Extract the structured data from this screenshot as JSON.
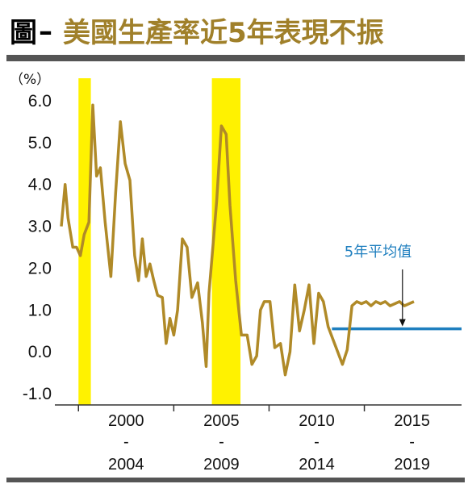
{
  "figure": {
    "label": "圖",
    "dash": "–",
    "title": "美國生產率近5年表現不振"
  },
  "colors": {
    "title": "#a0802a",
    "line": "#b08a28",
    "shade": "#fff200",
    "average": "#1f7fbf",
    "rule": "#555555"
  },
  "chart_data": {
    "type": "line",
    "unit": "（%）",
    "ylim": [
      -1.3,
      6.5
    ],
    "yticks": [
      "6.0",
      "5.0",
      "4.0",
      "3.0",
      "2.0",
      "1.0",
      "0.0",
      "-1.0"
    ],
    "ytick_values": [
      6,
      5,
      4,
      3,
      2,
      1,
      0,
      -1
    ],
    "xlim": [
      1999.1,
      2020.1
    ],
    "xaxis_groups": [
      {
        "top": "2000",
        "sep": "-",
        "bottom": "2004",
        "center": 2002.5
      },
      {
        "top": "2005",
        "sep": "-",
        "bottom": "2009",
        "center": 2007.5
      },
      {
        "top": "2010",
        "sep": "-",
        "bottom": "2014",
        "center": 2012.5
      },
      {
        "top": "2015",
        "sep": "-",
        "bottom": "2019",
        "center": 2017.5
      }
    ],
    "xaxis_ticks": [
      2000,
      2005,
      2010,
      2015
    ],
    "shaded_periods": [
      [
        2000.0,
        2000.65
      ],
      [
        2007.0,
        2008.5
      ]
    ],
    "series": [
      {
        "type": "line",
        "x": [
          1999.1,
          1999.3,
          1999.45,
          1999.7,
          1999.9,
          2000.1,
          2000.3,
          2000.55,
          2000.75,
          2000.95,
          2001.15,
          2001.4,
          2001.7,
          2001.95,
          2002.2,
          2002.45,
          2002.7,
          2002.95,
          2003.15,
          2003.35,
          2003.55,
          2003.75,
          2003.95,
          2004.15,
          2004.4,
          2004.6,
          2004.8,
          2005.0,
          2005.2,
          2005.45,
          2005.7,
          2005.95,
          2006.25,
          2006.5,
          2006.7,
          2006.85,
          2007.05,
          2007.25,
          2007.5,
          2007.75,
          2007.95,
          2008.25,
          2008.55,
          2008.85,
          2009.1,
          2009.35,
          2009.55,
          2009.75,
          2010.05,
          2010.3,
          2010.6,
          2010.85,
          2011.1,
          2011.35,
          2011.6,
          2011.85,
          2012.1,
          2012.35,
          2012.6,
          2012.85,
          2013.1,
          2013.35,
          2013.6,
          2013.85,
          2014.1,
          2014.35,
          2014.6,
          2014.85,
          2015.1,
          2015.35,
          2015.6,
          2015.85,
          2016.1,
          2016.35,
          2016.6,
          2016.85,
          2017.1,
          2017.35,
          2017.6
        ],
        "values": [
          3.0,
          4.0,
          3.2,
          2.5,
          2.5,
          2.3,
          2.8,
          3.1,
          5.9,
          4.2,
          4.4,
          3.1,
          1.8,
          3.8,
          5.5,
          4.5,
          4.1,
          2.3,
          1.7,
          2.7,
          1.8,
          2.1,
          1.7,
          1.35,
          1.3,
          0.2,
          0.8,
          0.4,
          1.0,
          2.7,
          2.5,
          1.3,
          1.65,
          0.7,
          -0.35,
          1.4,
          2.5,
          3.6,
          5.4,
          5.2,
          3.5,
          1.7,
          0.4,
          0.4,
          -0.3,
          -0.1,
          1.0,
          1.2,
          1.2,
          0.1,
          0.2,
          -0.55,
          0.0,
          1.6,
          0.5,
          1.0,
          1.6,
          0.2,
          1.4,
          1.2,
          0.6,
          0.3,
          0.0,
          -0.3,
          0.05,
          1.1,
          1.2,
          1.15,
          1.2,
          1.1,
          1.2,
          1.15,
          1.2,
          1.1,
          1.15,
          1.2,
          1.1,
          1.15,
          1.2
        ]
      },
      {
        "type": "hline",
        "name": "5年平均值",
        "value": 0.55,
        "x_range": [
          2013.3,
          2020.1
        ]
      }
    ],
    "annotation": {
      "text": "5年平均值",
      "target_x": 2017.0,
      "target_y": 0.55
    }
  }
}
